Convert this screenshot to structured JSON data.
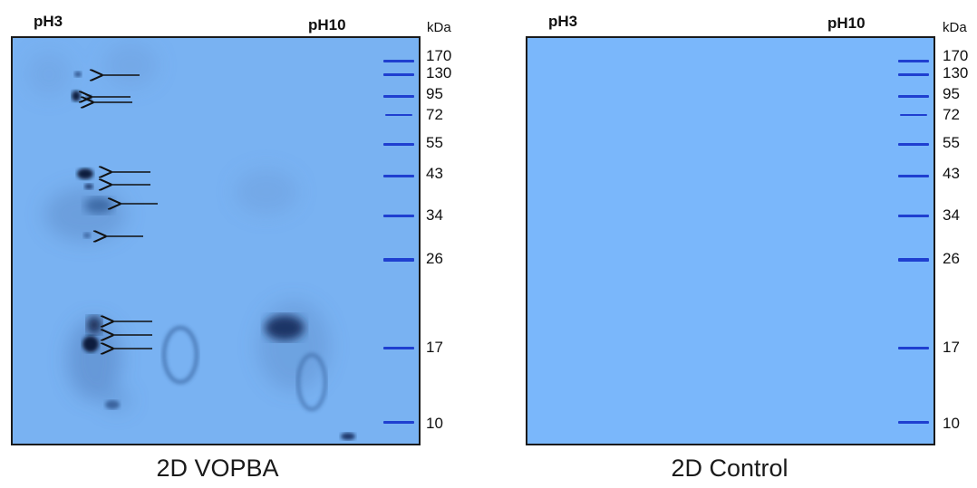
{
  "panels": [
    {
      "caption": "2D VOPBA",
      "ph_left": "pH3",
      "ph_right": "pH10",
      "unit": "kDa",
      "gel_color": "#79b2f2"
    },
    {
      "caption": "2D Control",
      "ph_left": "pH3",
      "ph_right": "pH10",
      "unit": "kDa",
      "gel_color": "#7ab7fb"
    }
  ],
  "markers": [
    "170",
    "130",
    "95",
    "72",
    "55",
    "43",
    "34",
    "26",
    "17",
    "10"
  ],
  "colors": {
    "marker_band": "#1f3fd0",
    "spot": "#0c1c3c"
  }
}
